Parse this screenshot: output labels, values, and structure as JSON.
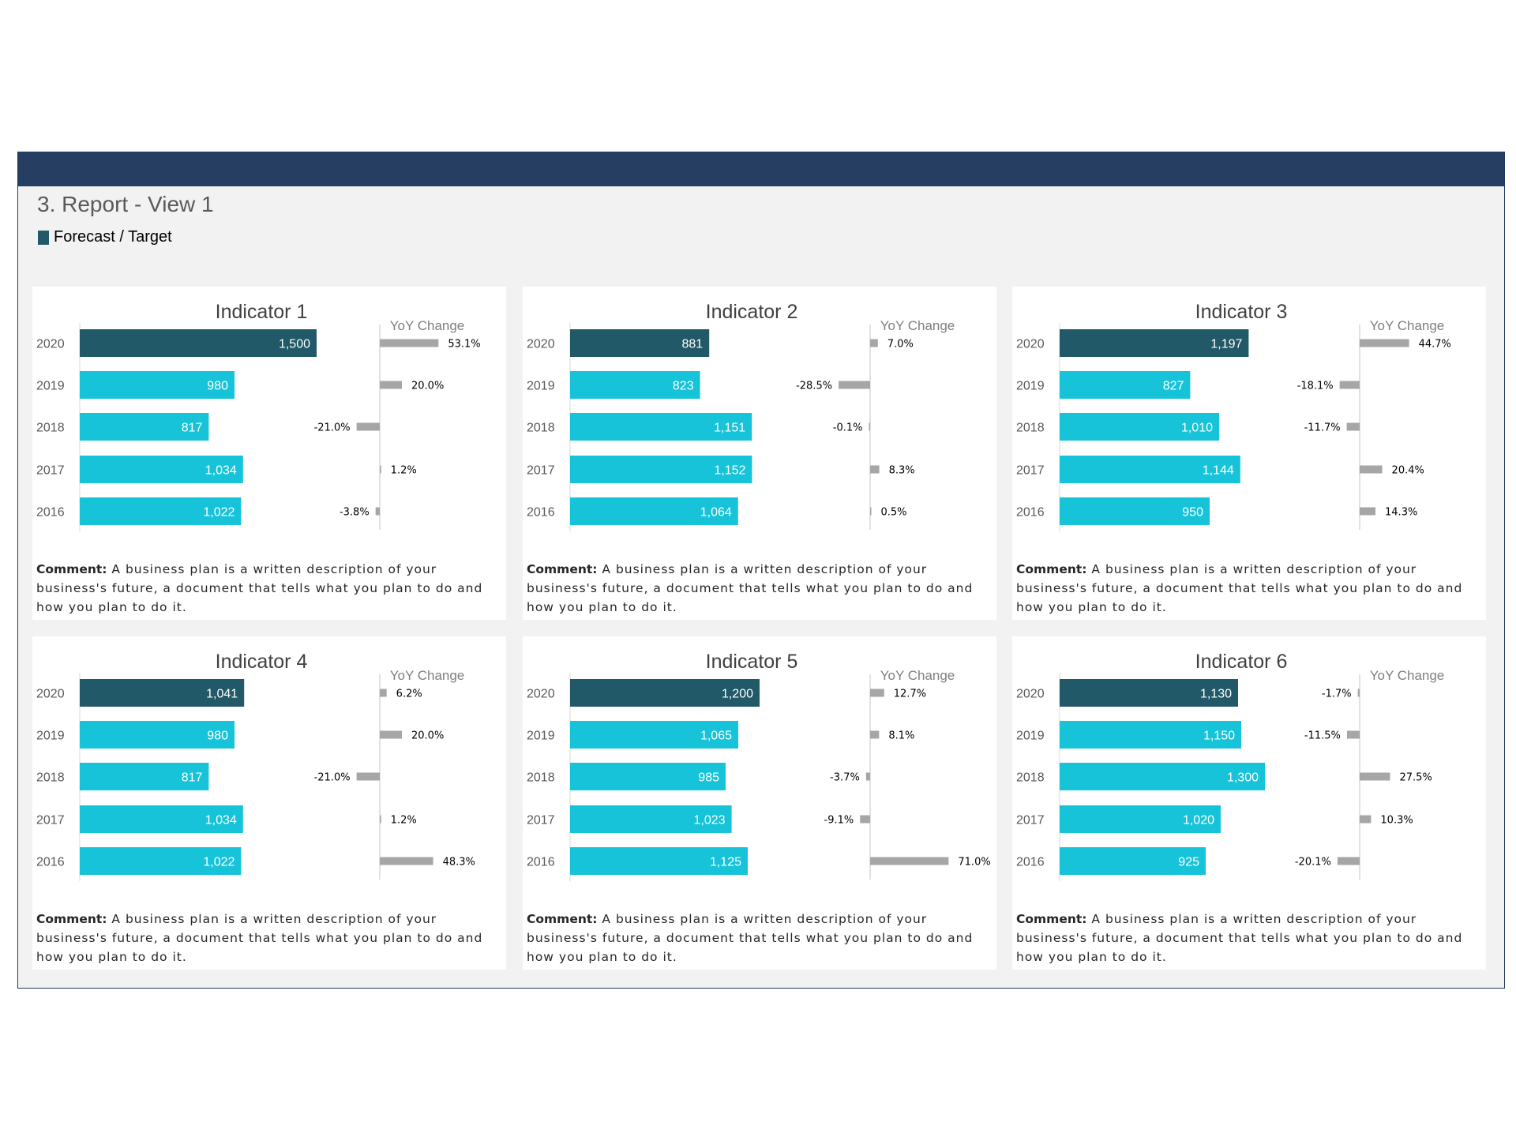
{
  "report": {
    "title": "3. Report - View 1",
    "legend_label": "Forecast / Target"
  },
  "colors": {
    "header_bar": "#263e62",
    "current_year_bar": "#215968",
    "prior_year_bar": "#17c3d8",
    "yoy_bar": "#a6a6a6",
    "background": "#f2f2f2"
  },
  "comment_label": "Comment:",
  "comment_text": " A business plan is a written description of your business's future, a document that tells what you plan to do and how you plan to do it.",
  "chart_data": [
    {
      "type": "bar",
      "title": "Indicator 1",
      "yoy_title": "YoY Change",
      "categories": [
        "2020",
        "2019",
        "2018",
        "2017",
        "2016"
      ],
      "values": [
        1500,
        980,
        817,
        1034,
        1022
      ],
      "value_labels": [
        "1,500",
        "980",
        "817",
        "1,034",
        "1,022"
      ],
      "yoy": [
        53.1,
        20.0,
        -21.0,
        1.2,
        -3.8
      ],
      "yoy_labels": [
        "53.1%",
        "20.0%",
        "-21.0%",
        "1.2%",
        "-3.8%"
      ]
    },
    {
      "type": "bar",
      "title": "Indicator 2",
      "yoy_title": "YoY Change",
      "categories": [
        "2020",
        "2019",
        "2018",
        "2017",
        "2016"
      ],
      "values": [
        881,
        823,
        1151,
        1152,
        1064
      ],
      "value_labels": [
        "881",
        "823",
        "1,151",
        "1,152",
        "1,064"
      ],
      "yoy": [
        7.0,
        -28.5,
        -0.1,
        8.3,
        0.5
      ],
      "yoy_labels": [
        "7.0%",
        "-28.5%",
        "-0.1%",
        "8.3%",
        "0.5%"
      ]
    },
    {
      "type": "bar",
      "title": "Indicator 3",
      "yoy_title": "YoY Change",
      "categories": [
        "2020",
        "2019",
        "2018",
        "2017",
        "2016"
      ],
      "values": [
        1197,
        827,
        1010,
        1144,
        950
      ],
      "value_labels": [
        "1,197",
        "827",
        "1,010",
        "1,144",
        "950"
      ],
      "yoy": [
        44.7,
        -18.1,
        -11.7,
        20.4,
        14.3
      ],
      "yoy_labels": [
        "44.7%",
        "-18.1%",
        "-11.7%",
        "20.4%",
        "14.3%"
      ]
    },
    {
      "type": "bar",
      "title": "Indicator 4",
      "yoy_title": "YoY Change",
      "categories": [
        "2020",
        "2019",
        "2018",
        "2017",
        "2016"
      ],
      "values": [
        1041,
        980,
        817,
        1034,
        1022
      ],
      "value_labels": [
        "1,041",
        "980",
        "817",
        "1,034",
        "1,022"
      ],
      "yoy": [
        6.2,
        20.0,
        -21.0,
        1.2,
        48.3
      ],
      "yoy_labels": [
        "6.2%",
        "20.0%",
        "-21.0%",
        "1.2%",
        "48.3%"
      ]
    },
    {
      "type": "bar",
      "title": "Indicator 5",
      "yoy_title": "YoY Change",
      "categories": [
        "2020",
        "2019",
        "2018",
        "2017",
        "2016"
      ],
      "values": [
        1200,
        1065,
        985,
        1023,
        1125
      ],
      "value_labels": [
        "1,200",
        "1,065",
        "985",
        "1,023",
        "1,125"
      ],
      "yoy": [
        12.7,
        8.1,
        -3.7,
        -9.1,
        71.0
      ],
      "yoy_labels": [
        "12.7%",
        "8.1%",
        "-3.7%",
        "-9.1%",
        "71.0%"
      ]
    },
    {
      "type": "bar",
      "title": "Indicator 6",
      "yoy_title": "YoY Change",
      "categories": [
        "2020",
        "2019",
        "2018",
        "2017",
        "2016"
      ],
      "values": [
        1130,
        1150,
        1300,
        1020,
        925
      ],
      "value_labels": [
        "1,130",
        "1,150",
        "1,300",
        "1,020",
        "925"
      ],
      "yoy": [
        -1.7,
        -11.5,
        27.5,
        10.3,
        -20.1
      ],
      "yoy_labels": [
        "-1.7%",
        "-11.5%",
        "27.5%",
        "10.3%",
        "-20.1%"
      ]
    }
  ]
}
